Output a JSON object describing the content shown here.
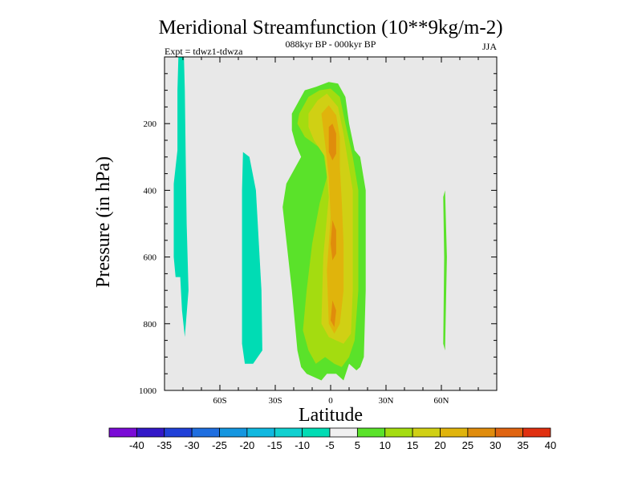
{
  "chart_data": {
    "type": "contour",
    "title": "Meridional Streamfunction (10**9kg/m-2)",
    "subtitle": "088kyr BP - 000kyr BP",
    "left_label": "Expt = tdwz1-tdwza",
    "right_label": "JJA",
    "xlabel": "Latitude",
    "ylabel": "Pressure (in hPa)",
    "xlim": [
      -90,
      90
    ],
    "ylim": [
      0,
      1000
    ],
    "y_inverted": true,
    "x_ticks": [
      {
        "value": -60,
        "label": "60S"
      },
      {
        "value": -30,
        "label": "30S"
      },
      {
        "value": 0,
        "label": "0"
      },
      {
        "value": 30,
        "label": "30N"
      },
      {
        "value": 60,
        "label": "60N"
      }
    ],
    "y_ticks": [
      {
        "value": 200,
        "label": "200"
      },
      {
        "value": 400,
        "label": "400"
      },
      {
        "value": 600,
        "label": "600"
      },
      {
        "value": 800,
        "label": "800"
      },
      {
        "value": 1000,
        "label": "1000"
      }
    ],
    "background_color": "#e8e8e8",
    "colorbar": {
      "labels": [
        "-40",
        "-35",
        "-30",
        "-25",
        "-20",
        "-15",
        "-10",
        "-5",
        "5",
        "10",
        "15",
        "20",
        "25",
        "30",
        "35",
        "40"
      ],
      "colors": [
        "#7a0bd6",
        "#3318c8",
        "#2040d8",
        "#1e6ee0",
        "#1496e0",
        "#10b8e0",
        "#10d0d0",
        "#00dcb4",
        "#f0f0f0",
        "#5ae22a",
        "#a4dc10",
        "#d0d014",
        "#e0b40c",
        "#e08c0c",
        "#e06410",
        "#e03010"
      ]
    },
    "regions": [
      {
        "name": "sh-high-lat-tongue",
        "level": "-10 to -5",
        "color": "#00dcb4",
        "points": [
          [
            -82.5,
            0
          ],
          [
            -79.5,
            0
          ],
          [
            -79,
            100
          ],
          [
            -78.5,
            300
          ],
          [
            -78,
            500
          ],
          [
            -77,
            700
          ],
          [
            -79,
            840
          ],
          [
            -80.5,
            760
          ],
          [
            -81.5,
            660
          ],
          [
            -84,
            660
          ],
          [
            -85,
            600
          ],
          [
            -85,
            380
          ],
          [
            -83,
            280
          ],
          [
            -83,
            100
          ]
        ]
      },
      {
        "name": "sh-mid-lat-cell",
        "level": "-10 to -5",
        "color": "#00dcb4",
        "points": [
          [
            -47.5,
            285
          ],
          [
            -44,
            300
          ],
          [
            -40.5,
            400
          ],
          [
            -37.5,
            700
          ],
          [
            -37,
            880
          ],
          [
            -42,
            920
          ],
          [
            -46.5,
            920
          ],
          [
            -48,
            860
          ],
          [
            -48,
            400
          ]
        ]
      },
      {
        "name": "tropical-cell-outer",
        "level": "5 to 10",
        "color": "#5ae22a",
        "points": [
          [
            -21,
            170
          ],
          [
            -18,
            140
          ],
          [
            -14,
            100
          ],
          [
            -8,
            90
          ],
          [
            -1,
            75
          ],
          [
            4,
            80
          ],
          [
            8,
            120
          ],
          [
            10,
            200
          ],
          [
            13,
            280
          ],
          [
            16,
            300
          ],
          [
            19,
            400
          ],
          [
            19,
            700
          ],
          [
            18,
            900
          ],
          [
            16,
            930
          ],
          [
            14,
            940
          ],
          [
            10,
            920
          ],
          [
            7,
            970
          ],
          [
            3,
            950
          ],
          [
            -2,
            950
          ],
          [
            -5,
            970
          ],
          [
            -9,
            960
          ],
          [
            -13,
            950
          ],
          [
            -16,
            930
          ],
          [
            -18,
            880
          ],
          [
            -21,
            700
          ],
          [
            -23,
            600
          ],
          [
            -26,
            450
          ],
          [
            -24,
            380
          ],
          [
            -19,
            330
          ],
          [
            -16,
            300
          ],
          [
            -19,
            260
          ],
          [
            -21,
            220
          ]
        ]
      },
      {
        "name": "tropical-cell-15",
        "level": "10 to 15",
        "color": "#a4dc10",
        "points": [
          [
            -17,
            170
          ],
          [
            -12,
            120
          ],
          [
            -6,
            100
          ],
          [
            0,
            95
          ],
          [
            5,
            120
          ],
          [
            8,
            200
          ],
          [
            12,
            300
          ],
          [
            15,
            400
          ],
          [
            15,
            700
          ],
          [
            13,
            850
          ],
          [
            10,
            900
          ],
          [
            6,
            930
          ],
          [
            2,
            920
          ],
          [
            -3,
            900
          ],
          [
            -8,
            920
          ],
          [
            -12,
            880
          ],
          [
            -15,
            820
          ],
          [
            -13,
            700
          ],
          [
            -10,
            560
          ],
          [
            -6,
            440
          ],
          [
            -2,
            360
          ],
          [
            -4,
            280
          ],
          [
            -14,
            240
          ],
          [
            -18,
            200
          ]
        ]
      },
      {
        "name": "tropical-cell-20",
        "level": "15 to 20",
        "color": "#d0d014",
        "points": [
          [
            -12,
            170
          ],
          [
            -7,
            130
          ],
          [
            -2,
            110
          ],
          [
            4,
            150
          ],
          [
            7,
            230
          ],
          [
            9,
            300
          ],
          [
            12,
            400
          ],
          [
            12,
            700
          ],
          [
            11,
            830
          ],
          [
            7,
            860
          ],
          [
            3,
            850
          ],
          [
            -1,
            840
          ],
          [
            -5,
            800
          ],
          [
            -4,
            600
          ],
          [
            -1,
            420
          ],
          [
            -3,
            300
          ],
          [
            -9,
            250
          ],
          [
            -12,
            210
          ]
        ]
      },
      {
        "name": "tropical-cell-25",
        "level": "20 to 25",
        "color": "#e0b40c",
        "points": [
          [
            -5,
            170
          ],
          [
            -1,
            145
          ],
          [
            3,
            175
          ],
          [
            5,
            240
          ],
          [
            5,
            330
          ],
          [
            6,
            430
          ],
          [
            7,
            560
          ],
          [
            7,
            700
          ],
          [
            5,
            800
          ],
          [
            2,
            830
          ],
          [
            -1,
            800
          ],
          [
            -2,
            640
          ],
          [
            0,
            480
          ],
          [
            -1,
            360
          ],
          [
            -3,
            260
          ]
        ]
      },
      {
        "name": "tropical-core-upper",
        "level": "25 to 30",
        "color": "#e08c0c",
        "points": [
          [
            -1,
            210
          ],
          [
            1,
            200
          ],
          [
            3,
            230
          ],
          [
            3,
            290
          ],
          [
            1,
            310
          ],
          [
            -1,
            285
          ]
        ]
      },
      {
        "name": "tropical-core-mid",
        "level": "25 to 30",
        "color": "#e08c0c",
        "points": [
          [
            1,
            490
          ],
          [
            3,
            520
          ],
          [
            3,
            590
          ],
          [
            1,
            610
          ],
          [
            0,
            560
          ]
        ]
      },
      {
        "name": "tropical-core-low",
        "level": "25 to 30",
        "color": "#e08c0c",
        "points": [
          [
            1,
            730
          ],
          [
            3,
            760
          ],
          [
            2,
            810
          ],
          [
            0,
            790
          ]
        ]
      },
      {
        "name": "nh-high-lat-streak",
        "level": "5 to 10",
        "color": "#5ae22a",
        "points": [
          [
            61,
            420
          ],
          [
            62,
            400
          ],
          [
            63,
            600
          ],
          [
            62,
            880
          ],
          [
            61,
            860
          ],
          [
            61.5,
            600
          ]
        ]
      }
    ]
  }
}
